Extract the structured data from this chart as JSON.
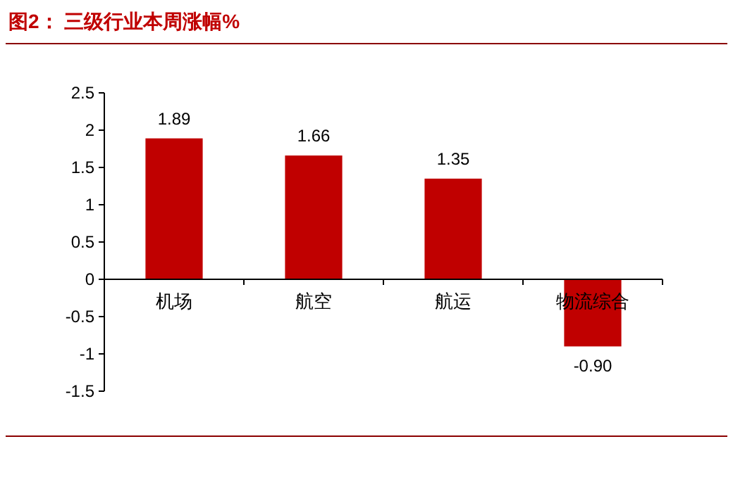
{
  "chart_data": {
    "type": "bar",
    "title": "图2：  三级行业本周涨幅%",
    "categories": [
      "机场",
      "航空",
      "航运",
      "物流综合"
    ],
    "values": [
      1.89,
      1.66,
      1.35,
      -0.9
    ],
    "color": "#c00000",
    "value_labels": [
      "1.89",
      "1.66",
      "1.35",
      "-0.90"
    ],
    "ylim": [
      -1.5,
      2.5
    ],
    "yticks": [
      -1.5,
      -1,
      -0.5,
      0,
      0.5,
      1,
      1.5,
      2,
      2.5
    ]
  }
}
